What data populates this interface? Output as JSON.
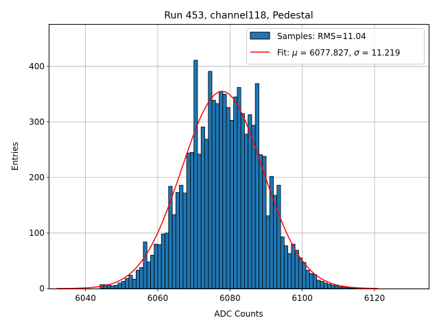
{
  "chart_data": {
    "type": "bar",
    "title": "Run 453, channel118, Pedestal",
    "xlabel": "ADC Counts",
    "ylabel": "Entries",
    "xlim": [
      6030,
      6135
    ],
    "ylim": [
      0,
      475
    ],
    "xticks": [
      6040,
      6060,
      6080,
      6100,
      6120
    ],
    "yticks": [
      0,
      100,
      200,
      300,
      400
    ],
    "grid": true,
    "legend_position": "upper-right",
    "colors": {
      "bars": "#1f77b4",
      "bar_edge": "#000000",
      "fit": "#ff0000",
      "grid": "#b0b0b0"
    },
    "histogram": {
      "name": "Samples: RMS=11.04",
      "bin_start": 6044,
      "bin_width": 1,
      "counts": [
        7,
        7,
        6,
        5,
        6,
        10,
        13,
        18,
        24,
        17,
        33,
        38,
        84,
        48,
        60,
        80,
        79,
        98,
        100,
        184,
        133,
        173,
        186,
        172,
        244,
        245,
        411,
        242,
        291,
        269,
        391,
        339,
        333,
        355,
        350,
        326,
        303,
        345,
        362,
        315,
        278,
        313,
        294,
        369,
        241,
        238,
        131,
        202,
        168,
        186,
        93,
        77,
        63,
        80,
        69,
        55,
        47,
        33,
        27,
        25,
        15,
        13,
        10,
        8,
        6,
        5,
        3,
        3,
        2,
        1,
        1,
        1,
        1,
        0
      ]
    },
    "fit": {
      "name": "Fit: μ = 6077.827, σ = 11.219",
      "label_html_prefix": "Fit: ",
      "mu": 6077.827,
      "sigma": 11.219,
      "amplitude": 355,
      "x_range": [
        6032,
        6121
      ]
    }
  }
}
